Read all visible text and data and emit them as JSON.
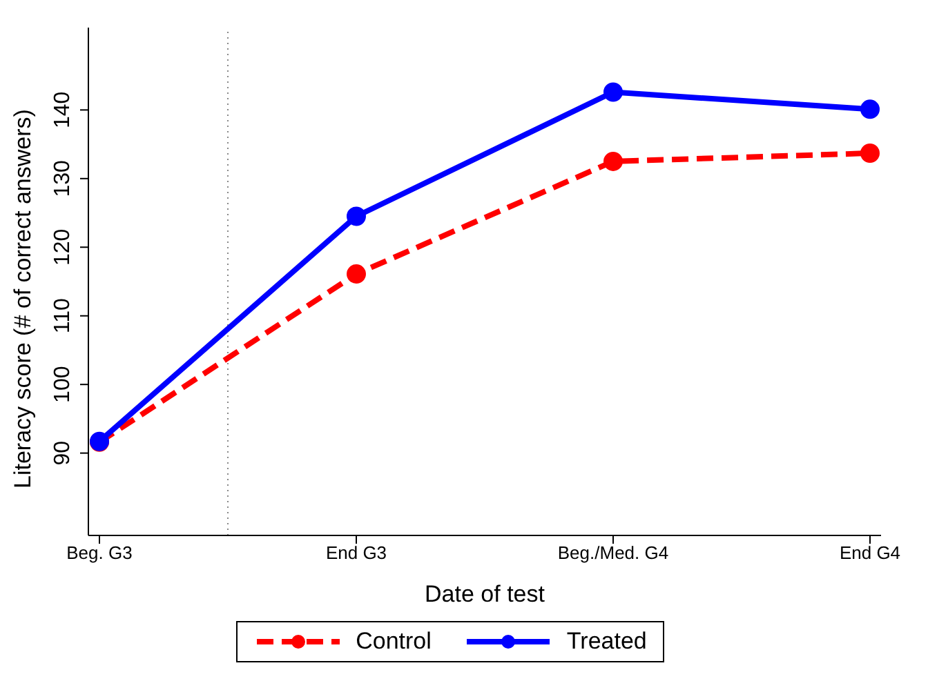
{
  "chart_data": {
    "type": "line",
    "xlabel": "Date of test",
    "ylabel": "Literacy score (# of correct answers)",
    "categories": [
      "Beg. G3",
      "End G3",
      "Beg./Med. G4",
      "End G4"
    ],
    "series": [
      {
        "name": "Control",
        "color": "#ff0000",
        "line_style": "dashed",
        "values": [
          91.6,
          116.1,
          132.5,
          133.7
        ]
      },
      {
        "name": "Treated",
        "color": "#0000ff",
        "line_style": "solid",
        "values": [
          91.7,
          124.5,
          142.6,
          140.1
        ]
      }
    ],
    "ylim": [
      78,
      152
    ],
    "yticks": [
      90,
      100,
      110,
      120,
      130,
      140
    ],
    "marker": "circle",
    "grid": false,
    "legend": "bottom"
  }
}
